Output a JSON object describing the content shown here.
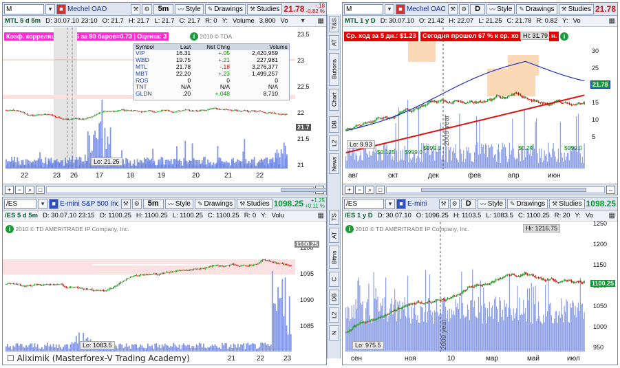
{
  "panes": [
    {
      "symbol": "M",
      "description": "Mechel OAO",
      "period": "5m",
      "style": "Style",
      "drawings": "Drawings",
      "studies": "Studies",
      "last": "21.78",
      "change": "-.18",
      "change_pct": "-0.82 %",
      "info": {
        "title": "MTL 5 d 5m",
        "d": "D: 30.07.10 23:10",
        "o": "O: 21.7",
        "h": "H: 21.7",
        "l": "L: 21.7",
        "c": "C: 21.7",
        "r": "R: 0",
        "y": "Y:",
        "volume": "Volume",
        "vol": "3,800",
        "vo": "Vo"
      },
      "banner": "Коэф. корреляции к /ES за 90 баров=0.73 | Оценка: 3",
      "watermark": "2010 © TDA",
      "lo_label": "Lo: 21.25",
      "y_ticks": [
        "23.5",
        "23",
        "22.5",
        "22",
        "21.5",
        "21"
      ],
      "x_ticks": [
        "22",
        "23",
        "26",
        "17",
        "18",
        "19",
        "20",
        "21",
        "22"
      ],
      "current_price": "21.7"
    },
    {
      "symbol": "M",
      "description": "Mechel OAO",
      "period": "D",
      "style": "Style",
      "drawings": "Drawings",
      "studies": "Studies",
      "last": "21.78",
      "info": {
        "title": "MTL 1 y D",
        "d": "D: 30.07.10",
        "o": "O: 21.42",
        "h": "H: 22.07",
        "l": "L: 21.25",
        "c": "C: 21.78",
        "r": "R: 0.82",
        "y": "Y:",
        "vo": "Vo"
      },
      "banner1": "Ср. ход за 5 дн.: $1.23",
      "banner2": "Сегодня прошел 67 % к ср. хо",
      "hi_label": "Hi: 31.79",
      "lo_label": "Lo: 9.93",
      "year_label": "2009 year",
      "div_labels": [
        "$0.125",
        "$999.0",
        "$999.0",
        "$0.24",
        "$999.0"
      ],
      "y_ticks": [
        "30",
        "25",
        "20",
        "15",
        "10",
        "5"
      ],
      "x_ticks": [
        "авг",
        "окт",
        "дек",
        "фев",
        "апр",
        "июн"
      ],
      "current_price": "21.78",
      "n_label": "н."
    },
    {
      "symbol": "/ES",
      "description": "E-mini S&P 500 Index...",
      "period": "5m",
      "style": "Style",
      "drawings": "Drawings",
      "studies": "Studies",
      "last": "1098.25",
      "change": "+1.25",
      "change_pct": "+0.11 %",
      "info": {
        "title": "/ES 5 d 5m",
        "d": "D: 30.07.10 23:15",
        "o": "O: 1100.25",
        "h": "H: 1100.25",
        "l": "L: 1100.25",
        "c": "C: 1100.25",
        "r": "R: 0",
        "y": "Y:",
        "vo": "Volu"
      },
      "watermark": "2010 © TD AMERITRADE IP Company, Inc.",
      "lo_label": "Lo: 1083.5",
      "y_ticks": [
        "1100",
        "1095",
        "1090",
        "1085"
      ],
      "x_ticks": [
        "21",
        "22",
        "23"
      ],
      "current_price": "1100.25"
    },
    {
      "symbol": "/ES",
      "description": "E-mini",
      "period": "D",
      "style": "Style",
      "drawings": "Drawings",
      "studies": "Studies",
      "last": "1098.25",
      "info": {
        "title": "/ES 1 y D",
        "d": "D: 30.07.10",
        "o": "O: 1096.25",
        "h": "H: 1103.5",
        "l": "L: 1083.5",
        "c": "C: 1100.25",
        "r": "R: 20",
        "y": "Y:",
        "vo": "Vo"
      },
      "watermark": "2010 © TD AMERITRADE IP Company, Inc.",
      "hi_label": "Hi: 1216.75",
      "lo_label": "Lo: 975.5",
      "year_label": "2009 year",
      "y_ticks": [
        "1250",
        "1200",
        "1150",
        "1100",
        "1050",
        "1000",
        "950"
      ],
      "x_ticks": [
        "сен",
        "ноя",
        "10",
        "мар",
        "май",
        "июл"
      ],
      "current_price": "1100.25"
    }
  ],
  "watchlist": {
    "headers": [
      "Symbol",
      "Last",
      "Net Chng",
      "Volume"
    ],
    "rows": [
      [
        "VIP",
        "16.31",
        "+.05",
        "2,420,959"
      ],
      [
        "WBD",
        "19.75",
        "+.21",
        "227,981"
      ],
      [
        "MTL",
        "21.78",
        "-.18",
        "3,276,377"
      ],
      [
        "MBT",
        "22.20",
        "+.23",
        "1,499,257"
      ],
      [
        "ROS",
        "0",
        "0",
        "0"
      ],
      [
        "TNT",
        "N/A",
        "N/A",
        "N/A"
      ],
      [
        "GLDN",
        ".20",
        "+.048",
        "8,710"
      ]
    ]
  },
  "side_buttons": [
    "T&S",
    "AT",
    "Buttons",
    "Chart",
    "DB",
    "L2",
    "News"
  ],
  "side_buttons_lower": [
    "TS",
    "AT",
    "Bttns",
    "C",
    "DB",
    "L2",
    "N"
  ],
  "footer": "Aliximik (Masterforex-V Trading Academy)",
  "colors": {
    "up": "#18a020",
    "down": "#d01818",
    "volume": "#6f86e0",
    "ma_blue": "#1c2fd0",
    "ma_red": "#e01010",
    "banner_pink": "#ff2ed0",
    "banner_red": "#e80000"
  }
}
